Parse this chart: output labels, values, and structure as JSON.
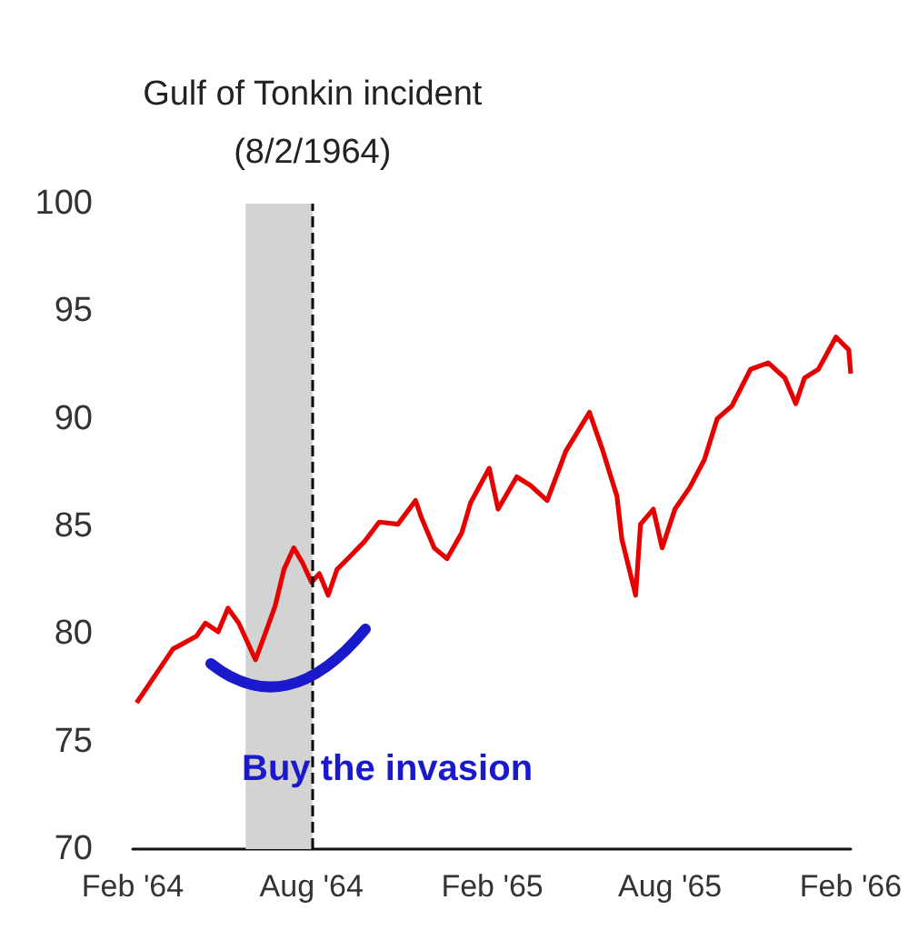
{
  "chart_data": {
    "type": "line",
    "annotations": [
      "Buy the invasion"
    ],
    "x": [
      "1964-02-05",
      "1964-03-13",
      "1964-04-06",
      "1964-04-15",
      "1964-04-28",
      "1964-05-08",
      "1964-05-19",
      "1964-06-05",
      "1964-06-14",
      "1964-06-25",
      "1964-07-04",
      "1964-07-14",
      "1964-07-23",
      "1964-08-01",
      "1964-08-09",
      "1964-08-18",
      "1964-08-27",
      "1964-09-07",
      "1964-09-24",
      "1964-10-09",
      "1964-10-28",
      "1964-11-15",
      "1964-11-21",
      "1964-12-04",
      "1964-12-17",
      "1965-01-01",
      "1965-01-10",
      "1965-01-29",
      "1965-02-07",
      "1965-02-26",
      "1965-03-12",
      "1965-03-29",
      "1965-04-17",
      "1965-05-11",
      "1965-05-24",
      "1965-06-08",
      "1965-06-13",
      "1965-06-27",
      "1965-07-02",
      "1965-07-15",
      "1965-07-24",
      "1965-08-06",
      "1965-08-21",
      "1965-09-05",
      "1965-09-18",
      "1965-10-03",
      "1965-10-22",
      "1965-11-09",
      "1965-11-26",
      "1965-12-07",
      "1965-12-16",
      "1965-12-30",
      "1966-01-17",
      "1966-01-30",
      "1966-02-01"
    ],
    "series": [
      {
        "color": "#e60000",
        "values": [
          76.8,
          79.3,
          79.9,
          80.5,
          80.1,
          81.2,
          80.5,
          78.8,
          79.9,
          81.3,
          83.0,
          84.0,
          83.3,
          82.4,
          82.8,
          81.8,
          83.0,
          83.5,
          84.3,
          85.2,
          85.1,
          86.2,
          85.4,
          84.0,
          83.5,
          84.7,
          86.1,
          87.7,
          85.8,
          87.3,
          86.9,
          86.2,
          88.5,
          90.3,
          88.6,
          86.4,
          84.4,
          81.8,
          85.1,
          85.8,
          84.0,
          85.8,
          86.8,
          88.1,
          90.0,
          90.6,
          92.3,
          92.6,
          91.9,
          90.7,
          91.9,
          92.3,
          93.8,
          93.2,
          92.1
        ]
      }
    ],
    "xlim": [
      "1964-02-01",
      "1966-02-01"
    ],
    "xticks": [
      {
        "value": "1964-02-01",
        "label": "Feb '64"
      },
      {
        "value": "1964-08-01",
        "label": "Aug '64"
      },
      {
        "value": "1965-02-01",
        "label": "Feb '65"
      },
      {
        "value": "1965-08-01",
        "label": "Aug '65"
      },
      {
        "value": "1966-02-01",
        "label": "Feb '66"
      }
    ],
    "ylim": [
      70,
      100
    ],
    "yticks": [
      70,
      75,
      80,
      85,
      90,
      95,
      100
    ],
    "ref_lines": [
      {
        "axis": "x",
        "value": "1964-08-02",
        "label": "Gulf of Tonkin incident\n(8/2/1964)",
        "color": "#000000",
        "line_style": "dashed"
      }
    ],
    "bands": [
      {
        "axis": "x",
        "from": "1964-05-26",
        "to": "1964-08-02",
        "color": "#d3d3d3"
      }
    ],
    "grid": false,
    "marker": "none",
    "line_style": "solid"
  }
}
